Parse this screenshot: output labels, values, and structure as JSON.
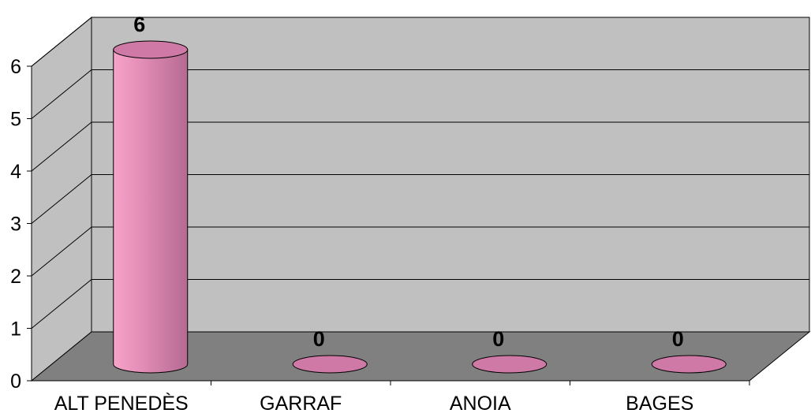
{
  "chart_data": {
    "type": "bar",
    "style": "3d-cylinder",
    "categories": [
      "ALT PENEDÈS",
      "GARRAF",
      "ANOIA",
      "BAGES"
    ],
    "series": [
      {
        "values": [
          6,
          0,
          0,
          0
        ]
      }
    ],
    "ylim": [
      0,
      6
    ],
    "yticks": [
      "0",
      "1",
      "2",
      "3",
      "4",
      "5",
      "6"
    ],
    "data_labels": [
      "6",
      "0",
      "0",
      "0"
    ],
    "grid": true,
    "legend": "none",
    "colors": {
      "bar": "#d47aa8",
      "bar_highlight": "#f7a3c8",
      "bar_top": "#cf79a6",
      "back_wall": "#c0c0c0",
      "floor": "#808080",
      "side_wall": "#c0c0c0"
    }
  }
}
